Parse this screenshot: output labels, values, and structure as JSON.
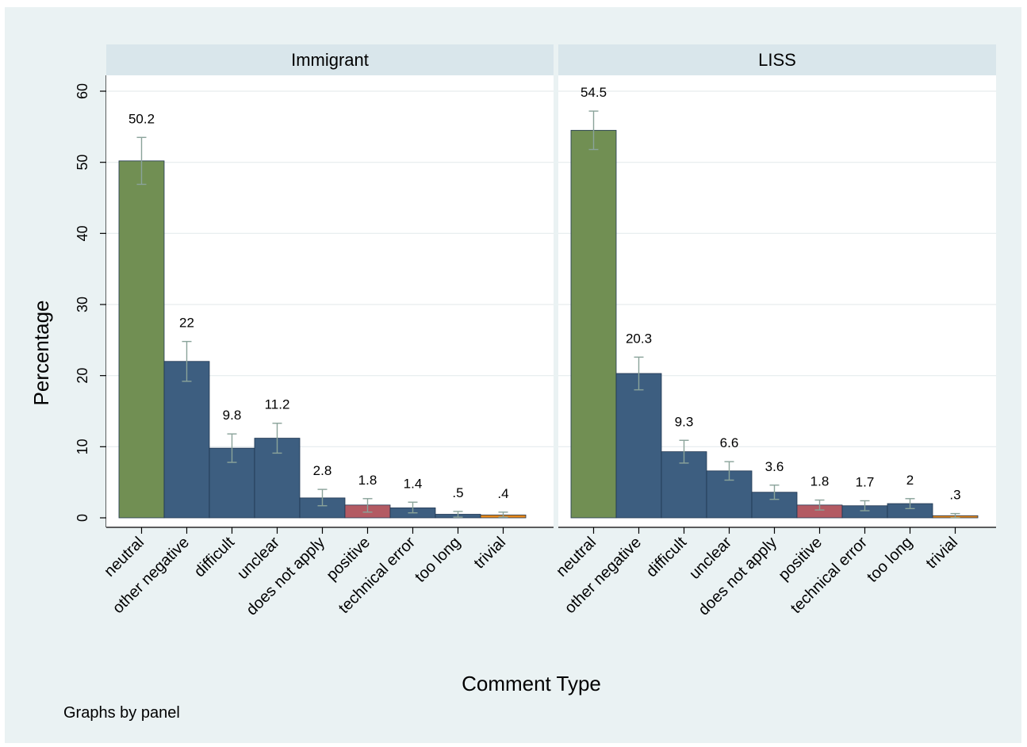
{
  "chart_data": {
    "type": "bar",
    "categories": [
      "neutral",
      "other negative",
      "difficult",
      "unclear",
      "does not apply",
      "positive",
      "technical error",
      "too long",
      "trivial"
    ],
    "colors": [
      "#718f53",
      "#3d5e80",
      "#3d5e80",
      "#3d5e80",
      "#3d5e80",
      "#b35a63",
      "#3d5e80",
      "#3d5e80",
      "#e8891a"
    ],
    "ylabel": "Percentage",
    "xlabel": "Comment Type",
    "ylim": [
      0,
      60
    ],
    "yticks": [
      "0",
      "10",
      "20",
      "30",
      "40",
      "50",
      "60"
    ],
    "ytick_values": [
      0,
      10,
      20,
      30,
      40,
      50,
      60
    ],
    "grid": true,
    "legend": "none",
    "note": "Graphs by panel",
    "panels": [
      {
        "title": "Immigrant",
        "values": [
          50.2,
          22,
          9.8,
          11.2,
          2.8,
          1.8,
          1.4,
          0.5,
          0.4
        ],
        "labels": [
          "50.2",
          "22",
          "9.8",
          "11.2",
          "2.8",
          "1.8",
          "1.4",
          ".5",
          ".4"
        ],
        "ci_low": [
          46.9,
          19.2,
          7.8,
          9.1,
          1.7,
          0.8,
          0.7,
          0.1,
          0.1
        ],
        "ci_high": [
          53.5,
          24.8,
          11.8,
          13.3,
          4.0,
          2.7,
          2.2,
          0.9,
          0.8
        ]
      },
      {
        "title": "LISS",
        "values": [
          54.5,
          20.3,
          9.3,
          6.6,
          3.6,
          1.8,
          1.7,
          2.0,
          0.3
        ],
        "labels": [
          "54.5",
          "20.3",
          "9.3",
          "6.6",
          "3.6",
          "1.8",
          "1.7",
          "2",
          ".3"
        ],
        "ci_low": [
          51.8,
          18.0,
          7.7,
          5.3,
          2.6,
          1.1,
          1.0,
          1.3,
          0.0
        ],
        "ci_high": [
          57.2,
          22.6,
          10.9,
          7.9,
          4.6,
          2.5,
          2.4,
          2.7,
          0.6
        ]
      }
    ]
  }
}
